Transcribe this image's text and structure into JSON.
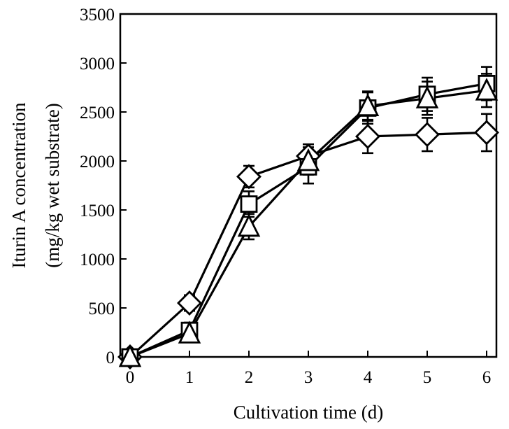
{
  "chart_data": {
    "type": "line",
    "title": "",
    "xlabel": "Cultivation time (d)",
    "ylabel_lines": [
      "Iturin A concentration",
      "(mg/kg wet substrate)"
    ],
    "xlim": [
      0,
      6
    ],
    "ylim": [
      0,
      3500
    ],
    "x_ticks": [
      0,
      1,
      2,
      3,
      4,
      5,
      6
    ],
    "y_ticks": [
      0,
      500,
      1000,
      1500,
      2000,
      2500,
      3000,
      3500
    ],
    "grid": false,
    "legend": "none",
    "x": [
      0,
      1,
      2,
      3,
      4,
      5,
      6
    ],
    "series": [
      {
        "marker": "diamond",
        "values": [
          0,
          550,
          1840,
          2050,
          2250,
          2270,
          2290
        ],
        "errors": [
          0,
          80,
          110,
          120,
          170,
          170,
          190
        ]
      },
      {
        "marker": "square",
        "values": [
          0,
          270,
          1560,
          1940,
          2540,
          2680,
          2790
        ],
        "errors": [
          0,
          80,
          130,
          170,
          160,
          170,
          170
        ]
      },
      {
        "marker": "triangle",
        "values": [
          0,
          240,
          1330,
          2000,
          2560,
          2640,
          2720
        ],
        "errors": [
          0,
          70,
          130,
          140,
          150,
          170,
          170
        ]
      }
    ]
  }
}
